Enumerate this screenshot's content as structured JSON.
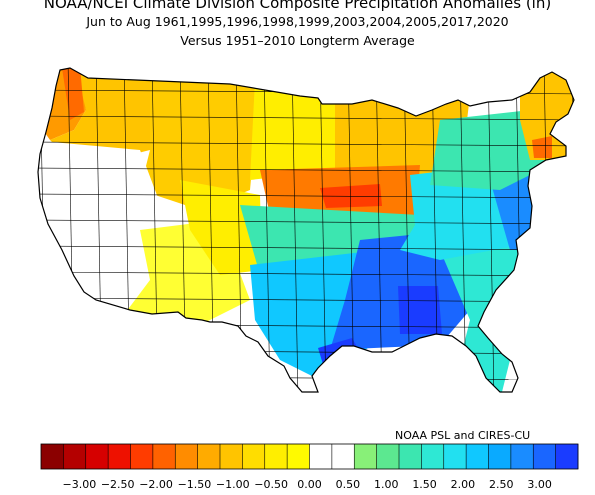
{
  "header": {
    "title": "NOAA/NCEI Climate Division Composite Precipitation Anomalies (in)",
    "subtitle": "Jun to Aug  1961,1995,1996,1998,1999,2003,2004,2005,2017,2020",
    "baseline": "Versus 1951–2010 Longterm Average"
  },
  "credit": "NOAA PSL and CIRES-CU",
  "colorbar": {
    "colors": [
      "#8b0000",
      "#b40000",
      "#d60000",
      "#ee1100",
      "#ff3c00",
      "#ff6200",
      "#ff8c00",
      "#ffab00",
      "#ffc400",
      "#ffdd00",
      "#ffee00",
      "#fffa00",
      "#ffffff",
      "#ffffff",
      "#88f078",
      "#5ce890",
      "#3ce6b0",
      "#2ee8d4",
      "#22e0f0",
      "#10c8ff",
      "#0aaaff",
      "#1a8cff",
      "#1a66ff",
      "#1a3cff"
    ],
    "tick_labels": [
      "−3.00",
      "−2.50",
      "−2.00",
      "−1.50",
      "−1.00",
      "−0.50",
      "0.00",
      "0.50",
      "1.00",
      "1.50",
      "2.00",
      "2.50",
      "3.00"
    ],
    "tick_values": [
      -3.0,
      -2.5,
      -2.0,
      -1.5,
      -1.0,
      -0.5,
      0.0,
      0.5,
      1.0,
      1.5,
      2.0,
      2.5,
      3.0
    ]
  },
  "regions": [
    {
      "name": "pacific-northwest-coast",
      "color": "#ff9a00",
      "anomaly": -1.6
    },
    {
      "name": "washington-oregon-interior",
      "color": "#ffc400",
      "anomaly": -1.0
    },
    {
      "name": "northern-rockies",
      "color": "#ffcc00",
      "anomaly": -0.9
    },
    {
      "name": "northern-plains",
      "color": "#ffee00",
      "anomaly": -0.5
    },
    {
      "name": "upper-midwest",
      "color": "#ffc400",
      "anomaly": -1.0
    },
    {
      "name": "central-midwest",
      "color": "#ff7a00",
      "anomaly": -1.8
    },
    {
      "name": "california-great-basin",
      "color": "#ffffff",
      "anomaly": 0.0
    },
    {
      "name": "southwest",
      "color": "#ffff33",
      "anomaly": -0.3
    },
    {
      "name": "southern-rockies",
      "color": "#ffee00",
      "anomaly": -0.6
    },
    {
      "name": "central-plains",
      "color": "#3ce6b0",
      "anomaly": 1.0
    },
    {
      "name": "texas-oklahoma",
      "color": "#10c8ff",
      "anomaly": 1.7
    },
    {
      "name": "deep-south",
      "color": "#1a66ff",
      "anomaly": 2.6
    },
    {
      "name": "southeast",
      "color": "#2ee8d4",
      "anomaly": 1.2
    },
    {
      "name": "ohio-valley",
      "color": "#22e0f0",
      "anomaly": 1.4
    },
    {
      "name": "mid-atlantic",
      "color": "#1a8cff",
      "anomaly": 2.2
    },
    {
      "name": "great-lakes-east",
      "color": "#3ce6b0",
      "anomaly": 1.0
    },
    {
      "name": "new-england",
      "color": "#ffc400",
      "anomaly": -1.0
    }
  ]
}
